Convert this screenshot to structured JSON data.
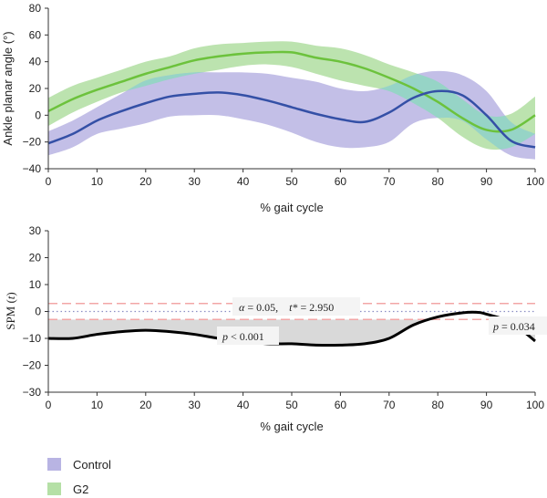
{
  "colors": {
    "control_band": "#b8b4e3",
    "control_line": "#3450a6",
    "g2_band": "#b5e0a6",
    "g2_line": "#6cc23c",
    "overlap_band": "#8fd8c2",
    "spm_line": "#000000",
    "spm_fill": "#d9d9d9",
    "threshold": "#f2a7a7",
    "zero_line": "#8c8fc4"
  },
  "chart_data": [
    {
      "type": "line",
      "xlabel": "% gait cycle",
      "ylabel": "Ankle planar angle (°)",
      "xlim": [
        0,
        100
      ],
      "ylim": [
        -40,
        80
      ],
      "xticks": [
        "0",
        "10",
        "20",
        "30",
        "40",
        "50",
        "60",
        "70",
        "80",
        "90",
        "100"
      ],
      "yticks": [
        "−40",
        "−20",
        "0",
        "20",
        "40",
        "60",
        "80"
      ],
      "x": [
        0,
        5,
        10,
        15,
        20,
        25,
        30,
        35,
        40,
        45,
        50,
        55,
        60,
        65,
        70,
        75,
        80,
        85,
        90,
        95,
        100
      ],
      "series": [
        {
          "name": "Control",
          "mean": [
            -21,
            -14,
            -4,
            3,
            9,
            14,
            16,
            17,
            15,
            11,
            6,
            1,
            -3,
            -5,
            2,
            13,
            18,
            15,
            0,
            -19,
            -24
          ],
          "upper": [
            -12,
            -4,
            6,
            16,
            26,
            30,
            32,
            32,
            32,
            31,
            28,
            25,
            20,
            18,
            22,
            30,
            33,
            30,
            18,
            -5,
            -14
          ],
          "lower": [
            -30,
            -24,
            -14,
            -10,
            -6,
            -1,
            0,
            0,
            -3,
            -7,
            -13,
            -20,
            -24,
            -24,
            -20,
            -6,
            -2,
            -4,
            -18,
            -30,
            -33
          ]
        },
        {
          "name": "G2",
          "mean": [
            3,
            12,
            19,
            25,
            31,
            36,
            41,
            44,
            46,
            47,
            47,
            43,
            40,
            35,
            28,
            20,
            10,
            -2,
            -11,
            -11,
            0
          ],
          "upper": [
            13,
            22,
            28,
            34,
            40,
            44,
            50,
            53,
            54,
            55,
            55,
            52,
            50,
            45,
            38,
            32,
            25,
            12,
            0,
            1,
            14
          ],
          "lower": [
            -8,
            2,
            10,
            17,
            22,
            27,
            31,
            34,
            37,
            38,
            36,
            31,
            26,
            22,
            18,
            9,
            -2,
            -16,
            -25,
            -24,
            -14
          ]
        }
      ]
    },
    {
      "type": "line",
      "xlabel": "% gait cycle",
      "ylabel_prefix": "SPM (",
      "ylabel_var": "t",
      "ylabel_suffix": ")",
      "xlim": [
        0,
        100
      ],
      "ylim": [
        -30,
        30
      ],
      "xticks": [
        "0",
        "10",
        "20",
        "30",
        "40",
        "50",
        "60",
        "70",
        "80",
        "90",
        "100"
      ],
      "yticks": [
        "−30",
        "−20",
        "−10",
        "0",
        "10",
        "20",
        "30"
      ],
      "threshold": 2.95,
      "x": [
        0,
        5,
        10,
        15,
        20,
        25,
        30,
        35,
        40,
        45,
        50,
        55,
        60,
        65,
        70,
        75,
        80,
        85,
        88,
        90,
        95,
        100
      ],
      "values": [
        -10,
        -10,
        -8.5,
        -7.5,
        -7,
        -7.5,
        -8.5,
        -10,
        -11,
        -12,
        -12,
        -12.5,
        -12.5,
        -12,
        -10,
        -5,
        -2,
        -0.5,
        -0.3,
        -1,
        -4,
        -11
      ],
      "alpha_label_var": "α",
      "alpha_label_rest": " = 0.05,",
      "tstar_label_var": "t*",
      "tstar_label_rest": " = 2.950",
      "p1_var": "p",
      "p1_rest": " < 0.001",
      "p2_var": "p",
      "p2_rest": " = 0.034"
    }
  ],
  "legend": [
    {
      "label": "Control",
      "color": "#b8b4e3"
    },
    {
      "label": "G2",
      "color": "#b5e0a6"
    }
  ]
}
